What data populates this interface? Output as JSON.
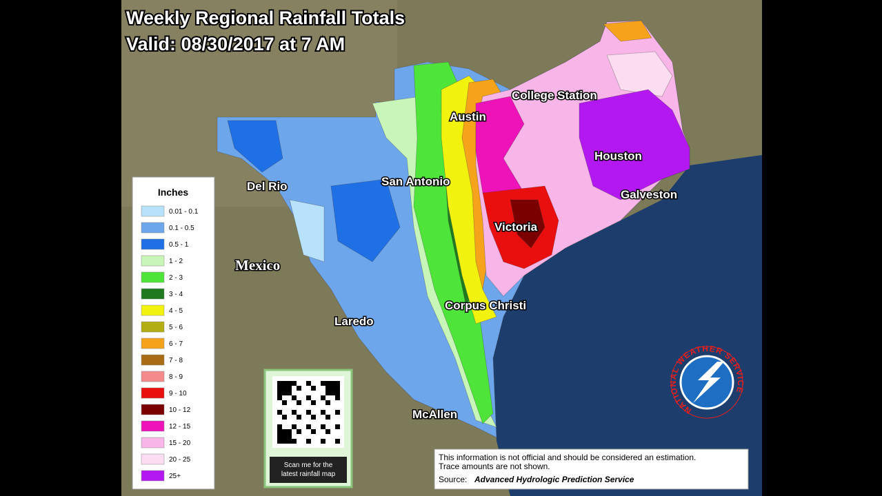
{
  "header": {
    "title": "Weekly Regional Rainfall Totals",
    "valid": "Valid: 08/30/2017 at 7 AM"
  },
  "cities": [
    {
      "label": "Austin"
    },
    {
      "label": "College Station"
    },
    {
      "label": "Houston"
    },
    {
      "label": "Galveston"
    },
    {
      "label": "San Antonio"
    },
    {
      "label": "Del Rio"
    },
    {
      "label": "Victoria"
    },
    {
      "label": "Corpus Christi"
    },
    {
      "label": "Laredo"
    },
    {
      "label": "McAllen"
    }
  ],
  "country": "Mexico",
  "legend": {
    "title": "Inches",
    "items": [
      {
        "label": "0.01 - 0.1",
        "color": "#b8e2fb"
      },
      {
        "label": "0.1 - 0.5",
        "color": "#6ea6ec"
      },
      {
        "label": "0.5 - 1",
        "color": "#1f6fe5"
      },
      {
        "label": "1 - 2",
        "color": "#c8f5b8"
      },
      {
        "label": "2 - 3",
        "color": "#4ee43a"
      },
      {
        "label": "3 - 4",
        "color": "#1f7a1f"
      },
      {
        "label": "4 - 5",
        "color": "#f2f20f"
      },
      {
        "label": "5 - 6",
        "color": "#b3ad14"
      },
      {
        "label": "6 - 7",
        "color": "#f5a31a"
      },
      {
        "label": "7 - 8",
        "color": "#a86d14"
      },
      {
        "label": "8 - 9",
        "color": "#f58a8a"
      },
      {
        "label": "9 - 10",
        "color": "#ea0f0f"
      },
      {
        "label": "10 - 12",
        "color": "#7a0000"
      },
      {
        "label": "12 - 15",
        "color": "#ee12b9"
      },
      {
        "label": "15 - 20",
        "color": "#f7b5e8"
      },
      {
        "label": "20 - 25",
        "color": "#fbdcf0"
      },
      {
        "label": "25+",
        "color": "#b418f0"
      }
    ]
  },
  "qr": {
    "caption": [
      "Scan me for the",
      "latest rainfall map"
    ]
  },
  "disclaimer": {
    "lines": [
      "This information is not official and should be considered an estimation.",
      "Trace amounts are not shown."
    ],
    "source_label": "Source:",
    "source": "Advanced Hydrologic Prediction Service"
  },
  "logo": {
    "text": "NATIONAL WEATHER SERVICE"
  }
}
